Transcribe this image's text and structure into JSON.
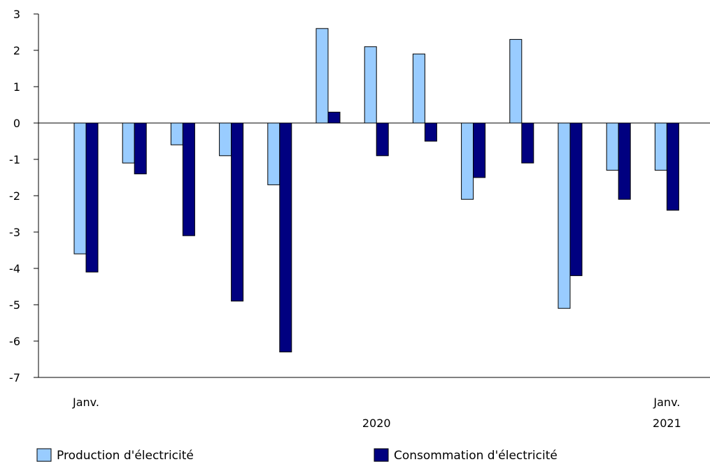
{
  "chart_data": {
    "type": "bar",
    "title": "",
    "xlabel": "",
    "ylabel": "",
    "ylim": [
      -7,
      3
    ],
    "y_ticks": [
      3,
      2,
      1,
      0,
      -1,
      -2,
      -3,
      -4,
      -5,
      -6,
      -7
    ],
    "grid": false,
    "legend_position": "bottom",
    "categories": [
      "2020-01",
      "2020-02",
      "2020-03",
      "2020-04",
      "2020-05",
      "2020-06",
      "2020-07",
      "2020-08",
      "2020-09",
      "2020-10",
      "2020-11",
      "2020-12",
      "2021-01"
    ],
    "x_tick_labels": [
      {
        "category_index": 0,
        "month": "Janv.",
        "year": ""
      },
      {
        "category_index": 6,
        "month": "",
        "year": "2020"
      },
      {
        "category_index": 12,
        "month": "Janv.",
        "year": "2021"
      }
    ],
    "series": [
      {
        "name": "Production d'électricité",
        "color": "#99ccff",
        "values": [
          -3.6,
          -1.1,
          -0.6,
          -0.9,
          -1.7,
          2.6,
          2.1,
          1.9,
          -2.1,
          2.3,
          -5.1,
          -1.3,
          -1.3
        ]
      },
      {
        "name": "Consommation d'électricité",
        "color": "#000080",
        "values": [
          -4.1,
          -1.4,
          -3.1,
          -4.9,
          -6.3,
          0.3,
          -0.9,
          -0.5,
          -1.5,
          -1.1,
          -4.2,
          -2.1,
          -2.4
        ]
      }
    ]
  }
}
